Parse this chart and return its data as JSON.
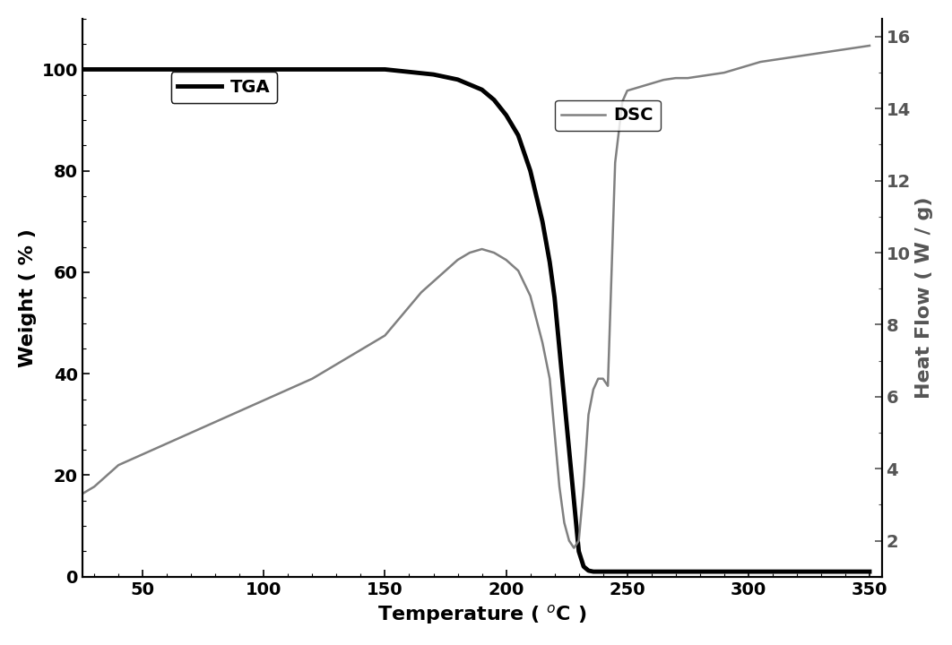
{
  "tga_x": [
    25,
    30,
    40,
    50,
    60,
    70,
    80,
    90,
    100,
    110,
    120,
    130,
    140,
    150,
    160,
    170,
    175,
    180,
    185,
    190,
    195,
    200,
    205,
    210,
    215,
    218,
    220,
    222,
    225,
    228,
    230,
    232,
    234,
    236,
    238,
    240,
    242,
    244,
    246,
    248,
    250,
    260,
    270,
    280,
    290,
    300,
    310,
    320,
    330,
    340,
    350
  ],
  "tga_y": [
    100,
    100,
    100,
    100,
    100,
    100,
    100,
    100,
    100,
    100,
    100,
    100,
    100,
    100,
    99.5,
    99,
    98.5,
    98,
    97,
    96,
    94,
    91,
    87,
    80,
    70,
    62,
    55,
    45,
    30,
    15,
    5,
    2,
    1.2,
    1,
    1,
    1,
    1,
    1,
    1,
    1,
    1,
    1,
    1,
    1,
    1,
    1,
    1,
    1,
    1,
    1,
    1
  ],
  "dsc_x": [
    25,
    30,
    35,
    40,
    50,
    60,
    70,
    80,
    90,
    100,
    110,
    120,
    130,
    140,
    150,
    160,
    165,
    170,
    175,
    180,
    185,
    190,
    195,
    200,
    205,
    210,
    215,
    218,
    220,
    222,
    224,
    226,
    228,
    230,
    232,
    234,
    236,
    238,
    240,
    242,
    245,
    248,
    250,
    255,
    260,
    265,
    270,
    275,
    280,
    285,
    290,
    295,
    300,
    305,
    310,
    315,
    320,
    325,
    330,
    335,
    340,
    345,
    350
  ],
  "dsc_y": [
    3.3,
    3.5,
    3.8,
    4.1,
    4.4,
    4.7,
    5.0,
    5.3,
    5.6,
    5.9,
    6.2,
    6.5,
    6.9,
    7.3,
    7.7,
    8.5,
    8.9,
    9.2,
    9.5,
    9.8,
    10.0,
    10.1,
    10.0,
    9.8,
    9.5,
    8.8,
    7.5,
    6.5,
    5.0,
    3.5,
    2.5,
    2.0,
    1.8,
    2.0,
    3.5,
    5.5,
    6.2,
    6.5,
    6.5,
    6.3,
    12.5,
    14.2,
    14.5,
    14.6,
    14.7,
    14.8,
    14.85,
    14.85,
    14.9,
    14.95,
    15.0,
    15.1,
    15.2,
    15.3,
    15.35,
    15.4,
    15.45,
    15.5,
    15.55,
    15.6,
    15.65,
    15.7,
    15.75
  ],
  "tga_color": "#000000",
  "dsc_color": "#808080",
  "tga_linewidth": 3.5,
  "dsc_linewidth": 1.8,
  "xlabel": "Temperature ( $^o$C )",
  "ylabel_left": "Weight ( % )",
  "ylabel_right": "Heat Flow ( W / g)",
  "xlim": [
    25,
    355
  ],
  "ylim_left": [
    0,
    110
  ],
  "ylim_right": [
    1,
    16.5
  ],
  "xticks": [
    50,
    100,
    150,
    200,
    250,
    300,
    350
  ],
  "yticks_left": [
    0,
    20,
    40,
    60,
    80,
    100
  ],
  "yticks_right": [
    2,
    4,
    6,
    8,
    10,
    12,
    14,
    16
  ],
  "background_color": "#ffffff",
  "legend_tga_label": "TGA",
  "legend_dsc_label": "DSC",
  "title_fontsize": 14,
  "axis_fontsize": 16,
  "tick_fontsize": 14,
  "legend_fontsize": 14
}
